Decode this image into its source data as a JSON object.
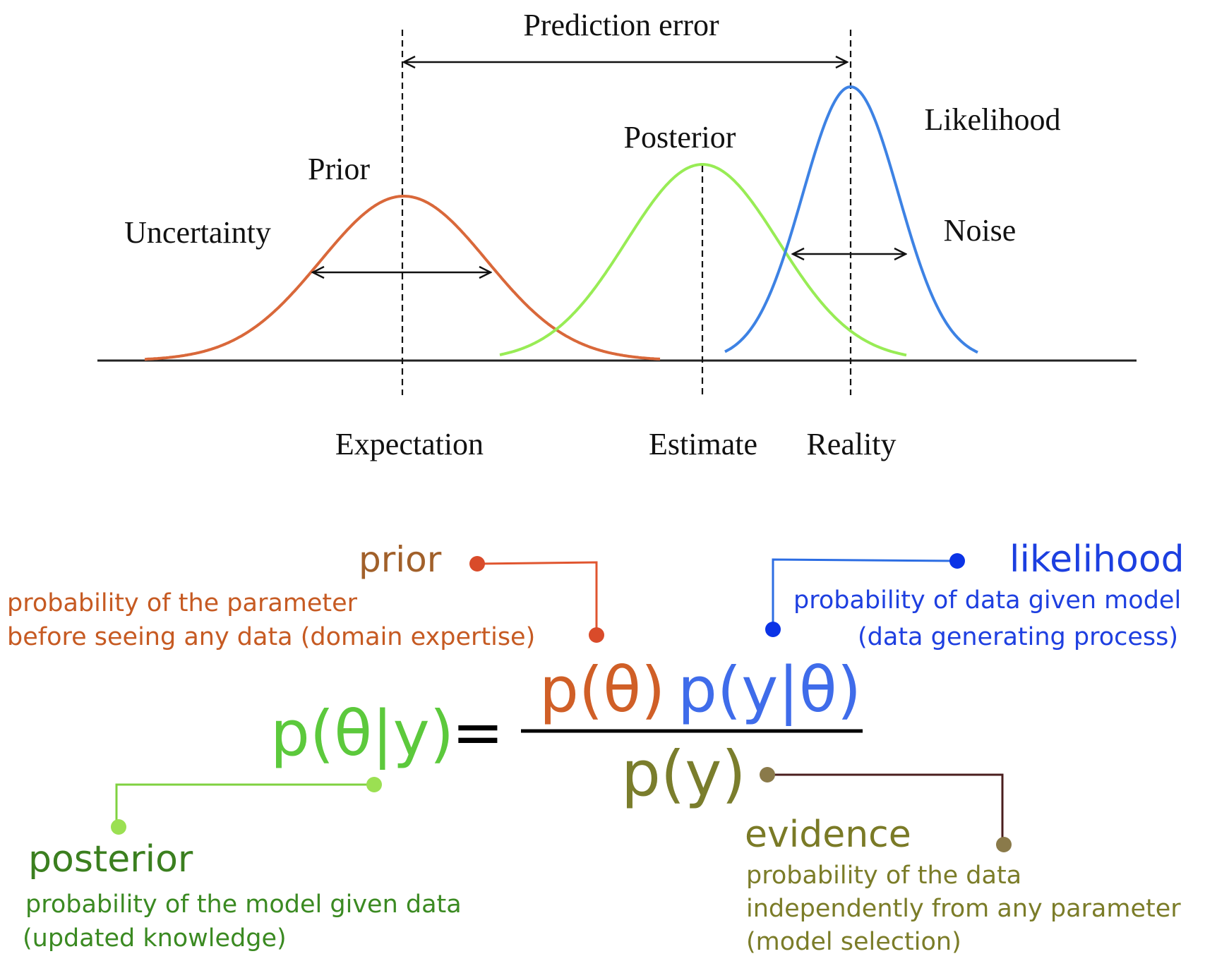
{
  "diagram": {
    "labels": {
      "prediction_error": "Prediction error",
      "prior": "Prior",
      "posterior": "Posterior",
      "likelihood": "Likelihood",
      "uncertainty": "Uncertainty",
      "noise": "Noise",
      "expectation": "Expectation",
      "estimate": "Estimate",
      "reality": "Reality"
    },
    "colors": {
      "prior": "#d9683a",
      "posterior": "#98ec55",
      "likelihood": "#3d82e4",
      "axis": "#222222"
    }
  },
  "equation": {
    "lhs": "p(θ|y)",
    "equals": "=",
    "numerator_prior": "p(θ)",
    "numerator_likelihood": "p(y|θ)",
    "denominator": "p(y)",
    "colors": {
      "posterior": "#5cc93c",
      "prior": "#d05f27",
      "likelihood": "#3f6cea",
      "evidence": "#7a7d2c",
      "black": "#000000"
    }
  },
  "annotations": {
    "prior": {
      "title": "prior",
      "line1": "probability of the parameter",
      "line2": "before seeing any data (domain expertise)",
      "title_color": "#a1602a",
      "text_color": "#c65a22",
      "connector_color": "#e0552f",
      "dot_color": "#d94b2a"
    },
    "likelihood": {
      "title": "likelihood",
      "line1": "probability of  data given model",
      "line2": "(data generating process)",
      "title_color": "#1c3fe0",
      "text_color": "#1e3fe0",
      "connector_color": "#2c6de3",
      "dot_color": "#0b33e6"
    },
    "posterior": {
      "title": "posterior",
      "line1": "probability of the model given data",
      "line2": "(updated knowledge)",
      "title_color": "#3b7f1f",
      "text_color": "#3b8a22",
      "connector_color": "#7fd140",
      "dot_color": "#9be052"
    },
    "evidence": {
      "title": "evidence",
      "line1": "probability of the data",
      "line2": "independently from any parameter",
      "line3": "(model selection)",
      "title_color": "#7a7a26",
      "text_color": "#7b7c28",
      "connector_color": "#4a1e1e",
      "dot_color": "#8a7a4a"
    }
  }
}
